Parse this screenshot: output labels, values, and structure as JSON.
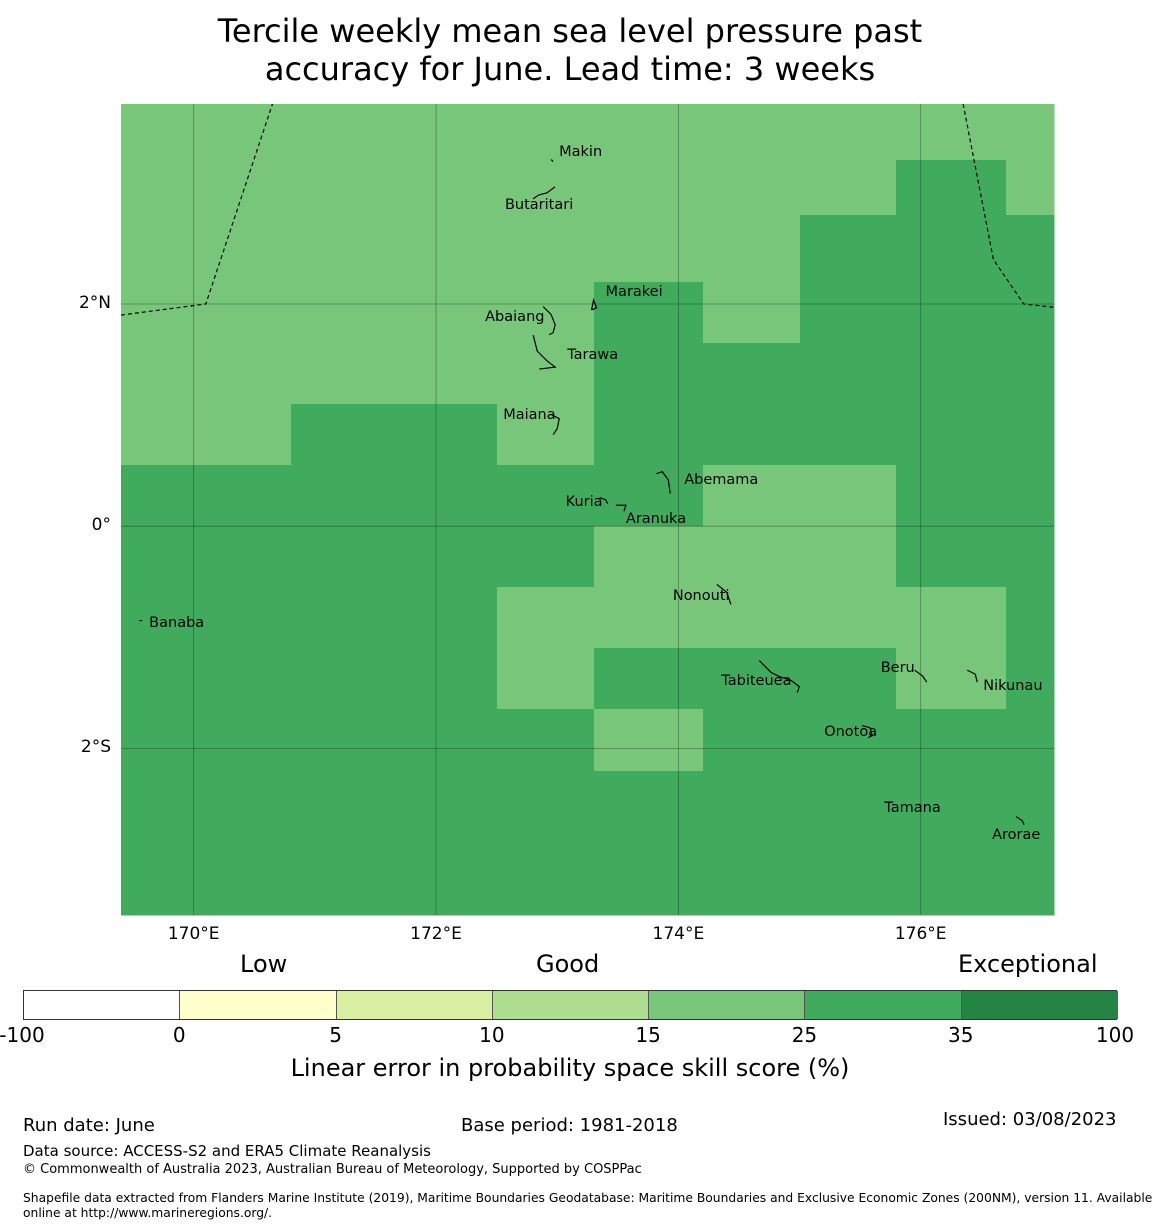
{
  "title": {
    "line1": "Tercile weekly mean sea level pressure past",
    "line2": "accuracy for June. Lead time: 3 weeks"
  },
  "colors": {
    "score_15_25": "#78c679",
    "score_25_35": "#41ab5d",
    "score_35_100": "#238443"
  },
  "map": {
    "lon_range": [
      169.4,
      177.1
    ],
    "lat_range": [
      -3.5,
      3.8
    ],
    "lon_ticks": [
      {
        "value": 170,
        "label": "170°E"
      },
      {
        "value": 172,
        "label": "172°E"
      },
      {
        "value": 174,
        "label": "174°E"
      },
      {
        "value": 176,
        "label": "176°E"
      }
    ],
    "lat_ticks": [
      {
        "value": 2,
        "label": "2°N"
      },
      {
        "value": 0,
        "label": "0°"
      },
      {
        "value": -2,
        "label": "2°S"
      }
    ],
    "skill_grid": {
      "lon_edges": [
        169.4,
        170.8,
        172.5,
        173.3,
        174.2,
        175.0,
        175.8,
        176.7,
        177.1
      ],
      "lat_edges": [
        3.8,
        3.3,
        2.8,
        2.2,
        1.65,
        1.1,
        0.55,
        0.0,
        -0.55,
        -1.1,
        -1.65,
        -2.2,
        -3.5
      ],
      "bands": [
        [
          1,
          1,
          1,
          1,
          1,
          1,
          1,
          1
        ],
        [
          1,
          1,
          1,
          1,
          1,
          1,
          2,
          1
        ],
        [
          1,
          1,
          1,
          1,
          1,
          2,
          2,
          2
        ],
        [
          1,
          1,
          1,
          2,
          1,
          2,
          2,
          2
        ],
        [
          1,
          1,
          1,
          2,
          2,
          2,
          2,
          2
        ],
        [
          1,
          2,
          1,
          2,
          2,
          2,
          2,
          2
        ],
        [
          2,
          2,
          2,
          2,
          1,
          1,
          2,
          2
        ],
        [
          2,
          2,
          2,
          1,
          1,
          1,
          2,
          2
        ],
        [
          2,
          2,
          1,
          1,
          1,
          1,
          1,
          2
        ],
        [
          2,
          2,
          1,
          2,
          2,
          2,
          1,
          2
        ],
        [
          2,
          2,
          2,
          1,
          2,
          2,
          2,
          2
        ],
        [
          2,
          2,
          2,
          2,
          2,
          2,
          2,
          2
        ]
      ]
    },
    "islands": [
      {
        "name": "Makin",
        "lon": 172.95,
        "lat": 3.3
      },
      {
        "name": "Butaritari",
        "lon": 172.8,
        "lat": 3.0
      },
      {
        "name": "Marakei",
        "lon": 173.3,
        "lat": 2.0
      },
      {
        "name": "Abaiang",
        "lon": 172.95,
        "lat": 1.85
      },
      {
        "name": "Tarawa",
        "lon": 173.0,
        "lat": 1.45
      },
      {
        "name": "Maiana",
        "lon": 173.0,
        "lat": 0.95
      },
      {
        "name": "Abemama",
        "lon": 173.9,
        "lat": 0.4
      },
      {
        "name": "Kuria",
        "lon": 173.4,
        "lat": 0.22
      },
      {
        "name": "Aranuka",
        "lon": 173.6,
        "lat": 0.17
      },
      {
        "name": "Nonouti",
        "lon": 174.4,
        "lat": -0.65
      },
      {
        "name": "Banaba",
        "lon": 169.55,
        "lat": -0.85
      },
      {
        "name": "Tabiteuea",
        "lon": 174.8,
        "lat": -1.3
      },
      {
        "name": "Beru",
        "lon": 176.0,
        "lat": -1.35
      },
      {
        "name": "Nikunau",
        "lon": 176.45,
        "lat": -1.35
      },
      {
        "name": "Onotoa",
        "lon": 175.55,
        "lat": -1.85
      },
      {
        "name": "Tamana",
        "lon": 175.98,
        "lat": -2.5
      },
      {
        "name": "Arorae",
        "lon": 176.82,
        "lat": -2.65
      }
    ],
    "eez_boundaries": [
      [
        [
          169.4,
          1.9
        ],
        [
          170.1,
          2.0
        ],
        [
          170.65,
          3.8
        ]
      ],
      [
        [
          176.35,
          3.8
        ],
        [
          176.6,
          2.4
        ],
        [
          176.85,
          2.0
        ],
        [
          177.1,
          1.97
        ]
      ]
    ]
  },
  "colorbar": {
    "categories": {
      "low": "Low",
      "good": "Good",
      "exceptional": "Exceptional"
    },
    "segments": [
      {
        "from": "-100",
        "to": "0",
        "color": "#ffffff"
      },
      {
        "from": "0",
        "to": "5",
        "color": "#ffffcc"
      },
      {
        "from": "5",
        "to": "10",
        "color": "#d9f0a3"
      },
      {
        "from": "10",
        "to": "15",
        "color": "#addd8e"
      },
      {
        "from": "15",
        "to": "25",
        "color": "#78c679"
      },
      {
        "from": "25",
        "to": "35",
        "color": "#41ab5d"
      },
      {
        "from": "35",
        "to": "100",
        "color": "#238443"
      }
    ],
    "tick_labels": [
      "-100",
      "0",
      "5",
      "10",
      "15",
      "25",
      "35",
      "100"
    ],
    "label": "Linear error in probability space skill score (%)"
  },
  "footer": {
    "run_date": "Run date: June",
    "base_period": "Base period: 1981-2018",
    "issued": "Issued: 03/08/2023",
    "data_source": "Data source: ACCESS-S2 and ERA5 Climate Reanalysis",
    "copyright": "© Commonwealth of Australia 2023, Australian Bureau of Meteorology, Supported by COSPPac",
    "shapefile_line1": "Shapefile data extracted from Flanders Marine Institute (2019), Maritime Boundaries Geodatabase: Maritime Boundaries and Exclusive Economic Zones (200NM), version 11. Available",
    "shapefile_line2": "online at http://www.marineregions.org/."
  }
}
